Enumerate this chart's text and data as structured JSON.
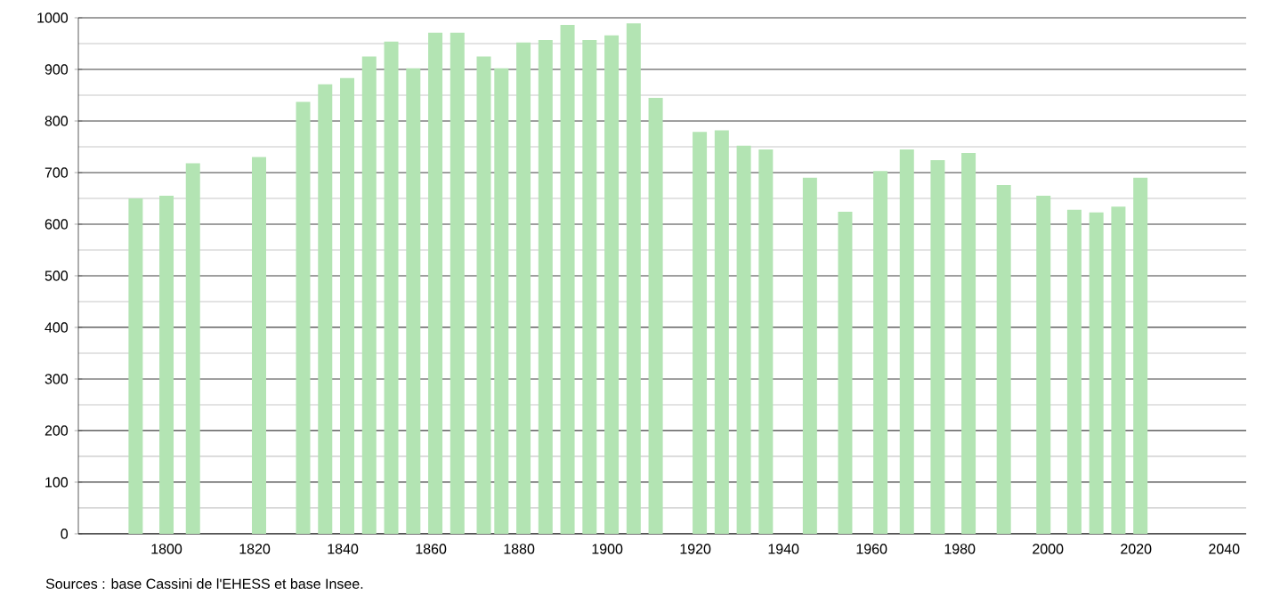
{
  "chart_data": {
    "type": "bar",
    "x": [
      1793,
      1800,
      1806,
      1821,
      1831,
      1836,
      1841,
      1846,
      1851,
      1856,
      1861,
      1866,
      1872,
      1876,
      1881,
      1886,
      1891,
      1896,
      1901,
      1906,
      1911,
      1921,
      1926,
      1931,
      1936,
      1946,
      1954,
      1962,
      1968,
      1975,
      1982,
      1990,
      1999,
      2006,
      2011,
      2016,
      2021
    ],
    "values": [
      650,
      655,
      718,
      730,
      837,
      871,
      883,
      925,
      954,
      902,
      971,
      971,
      925,
      902,
      952,
      957,
      986,
      957,
      966,
      989,
      845,
      779,
      782,
      752,
      745,
      690,
      624,
      703,
      745,
      724,
      738,
      676,
      655,
      628,
      623,
      634,
      690
    ],
    "color": "#b3e4b3",
    "xlim": [
      1780,
      2045
    ],
    "xticks": [
      1800,
      1820,
      1840,
      1860,
      1880,
      1900,
      1920,
      1940,
      1960,
      1980,
      2000,
      2020,
      2040
    ],
    "ylim": [
      0,
      1000
    ],
    "yticks": [
      0,
      100,
      200,
      300,
      400,
      500,
      600,
      700,
      800,
      900,
      1000
    ],
    "grid": "y",
    "annotations": [
      "Sources : base Cassini de l'EHESS et base Insee."
    ]
  }
}
